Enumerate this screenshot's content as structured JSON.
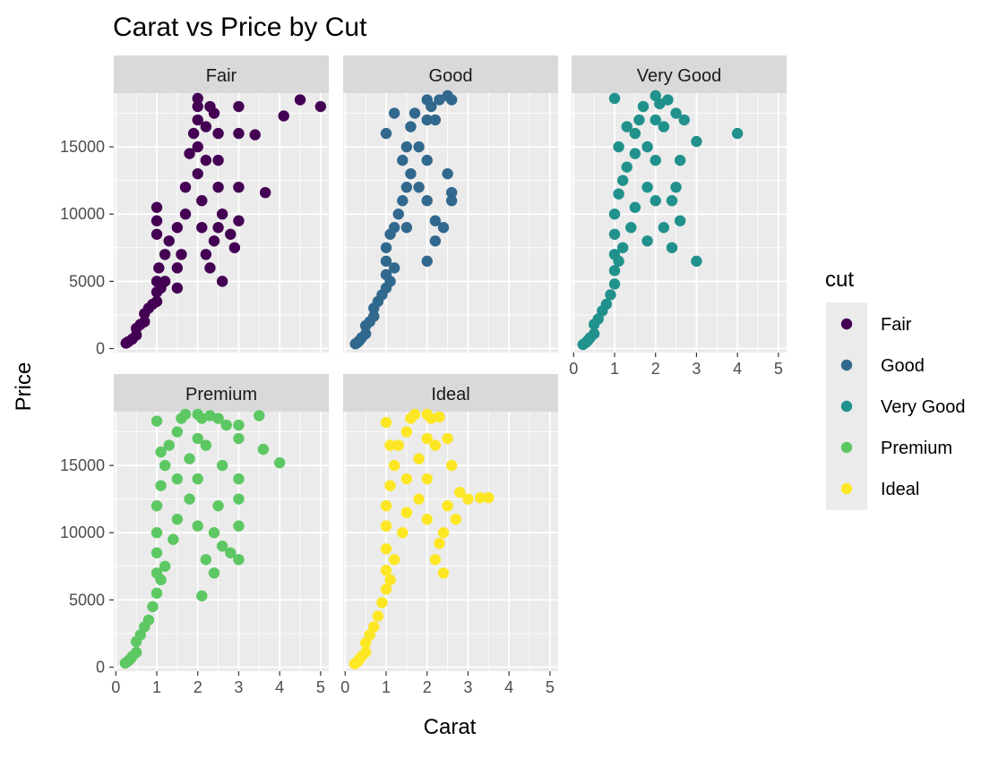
{
  "chart_data": {
    "type": "scatter",
    "title": "Carat vs Price by Cut",
    "xlabel": "Carat",
    "ylabel": "Price",
    "xlim": [
      -0.05,
      5.2
    ],
    "ylim": [
      -300,
      19000
    ],
    "x_ticks": [
      0,
      1,
      2,
      3,
      4,
      5
    ],
    "y_ticks": [
      0,
      5000,
      10000,
      15000
    ],
    "x_tick_labels": [
      "0",
      "1",
      "2",
      "3",
      "4",
      "5"
    ],
    "y_tick_labels": [
      "0",
      "5000",
      "10000",
      "15000"
    ],
    "grid": true,
    "legend": {
      "title": "cut",
      "position": "right"
    },
    "facets": [
      "Fair",
      "Good",
      "Very Good",
      "Premium",
      "Ideal"
    ],
    "series": [
      {
        "name": "Fair",
        "color": "#440154",
        "points": [
          [
            0.25,
            400
          ],
          [
            0.3,
            500
          ],
          [
            0.4,
            700
          ],
          [
            0.5,
            1000
          ],
          [
            0.5,
            1500
          ],
          [
            0.6,
            1800
          ],
          [
            0.7,
            2000
          ],
          [
            0.7,
            2600
          ],
          [
            0.8,
            3000
          ],
          [
            0.9,
            3300
          ],
          [
            1.0,
            3500
          ],
          [
            1.0,
            4200
          ],
          [
            1.0,
            5000
          ],
          [
            1.05,
            6000
          ],
          [
            1.1,
            4500
          ],
          [
            1.2,
            5000
          ],
          [
            1.0,
            10500
          ],
          [
            1.0,
            9500
          ],
          [
            1.0,
            8500
          ],
          [
            1.2,
            7000
          ],
          [
            1.3,
            8000
          ],
          [
            1.5,
            9000
          ],
          [
            1.5,
            6000
          ],
          [
            1.5,
            4500
          ],
          [
            1.6,
            7000
          ],
          [
            1.7,
            10000
          ],
          [
            1.7,
            12000
          ],
          [
            1.8,
            14500
          ],
          [
            1.9,
            16000
          ],
          [
            2.0,
            18600
          ],
          [
            2.0,
            18000
          ],
          [
            2.0,
            17000
          ],
          [
            2.0,
            15000
          ],
          [
            2.0,
            13000
          ],
          [
            2.1,
            11000
          ],
          [
            2.1,
            9000
          ],
          [
            2.2,
            14000
          ],
          [
            2.2,
            16500
          ],
          [
            2.3,
            18000
          ],
          [
            2.4,
            17500
          ],
          [
            2.5,
            16000
          ],
          [
            2.5,
            14000
          ],
          [
            2.5,
            12000
          ],
          [
            2.2,
            7000
          ],
          [
            2.3,
            6000
          ],
          [
            2.4,
            8000
          ],
          [
            2.5,
            9000
          ],
          [
            2.6,
            5000
          ],
          [
            2.6,
            10000
          ],
          [
            2.8,
            8500
          ],
          [
            2.9,
            7500
          ],
          [
            3.0,
            12000
          ],
          [
            3.0,
            18000
          ],
          [
            3.0,
            16000
          ],
          [
            3.0,
            9500
          ],
          [
            3.4,
            15900
          ],
          [
            3.65,
            11600
          ],
          [
            4.1,
            17300
          ],
          [
            4.5,
            18500
          ],
          [
            5.0,
            18000
          ]
        ]
      },
      {
        "name": "Good",
        "color": "#31688E",
        "points": [
          [
            0.25,
            350
          ],
          [
            0.3,
            450
          ],
          [
            0.35,
            600
          ],
          [
            0.4,
            800
          ],
          [
            0.5,
            1100
          ],
          [
            0.5,
            1700
          ],
          [
            0.6,
            2000
          ],
          [
            0.7,
            2400
          ],
          [
            0.7,
            3000
          ],
          [
            0.8,
            3500
          ],
          [
            0.9,
            4000
          ],
          [
            1.0,
            4500
          ],
          [
            1.0,
            5500
          ],
          [
            1.0,
            6500
          ],
          [
            1.0,
            7500
          ],
          [
            1.1,
            8500
          ],
          [
            1.1,
            5000
          ],
          [
            1.2,
            6000
          ],
          [
            1.2,
            9000
          ],
          [
            1.3,
            10000
          ],
          [
            1.4,
            11000
          ],
          [
            1.5,
            12000
          ],
          [
            1.5,
            9000
          ],
          [
            1.5,
            15000
          ],
          [
            1.6,
            16500
          ],
          [
            1.7,
            17500
          ],
          [
            1.2,
            17500
          ],
          [
            1.0,
            16000
          ],
          [
            1.4,
            14000
          ],
          [
            1.6,
            13000
          ],
          [
            1.8,
            15000
          ],
          [
            1.8,
            12000
          ],
          [
            2.0,
            18500
          ],
          [
            2.0,
            17000
          ],
          [
            2.0,
            14000
          ],
          [
            2.0,
            11000
          ],
          [
            2.1,
            18000
          ],
          [
            2.2,
            17000
          ],
          [
            2.3,
            18500
          ],
          [
            2.5,
            18800
          ],
          [
            2.6,
            18500
          ],
          [
            2.6,
            11600
          ],
          [
            2.6,
            11000
          ],
          [
            2.2,
            9500
          ],
          [
            2.2,
            8000
          ],
          [
            2.4,
            9000
          ],
          [
            2.5,
            13000
          ],
          [
            2.0,
            6500
          ]
        ]
      },
      {
        "name": "Very Good",
        "color": "#21918C",
        "points": [
          [
            0.23,
            300
          ],
          [
            0.3,
            450
          ],
          [
            0.35,
            600
          ],
          [
            0.4,
            800
          ],
          [
            0.5,
            1100
          ],
          [
            0.5,
            1800
          ],
          [
            0.6,
            2200
          ],
          [
            0.7,
            2800
          ],
          [
            0.8,
            3300
          ],
          [
            0.9,
            4000
          ],
          [
            1.0,
            4800
          ],
          [
            1.0,
            5800
          ],
          [
            1.0,
            7000
          ],
          [
            1.0,
            8500
          ],
          [
            1.0,
            10000
          ],
          [
            1.1,
            11500
          ],
          [
            1.1,
            6500
          ],
          [
            1.2,
            7500
          ],
          [
            1.2,
            12500
          ],
          [
            1.3,
            13500
          ],
          [
            1.4,
            9000
          ],
          [
            1.5,
            10500
          ],
          [
            1.5,
            14500
          ],
          [
            1.5,
            16000
          ],
          [
            1.6,
            17000
          ],
          [
            1.7,
            18000
          ],
          [
            1.0,
            18600
          ],
          [
            1.1,
            15000
          ],
          [
            1.3,
            16500
          ],
          [
            1.8,
            15000
          ],
          [
            1.8,
            12000
          ],
          [
            2.0,
            18800
          ],
          [
            2.0,
            17000
          ],
          [
            2.0,
            14000
          ],
          [
            2.0,
            11000
          ],
          [
            2.1,
            18200
          ],
          [
            2.2,
            16500
          ],
          [
            2.3,
            18500
          ],
          [
            2.5,
            17500
          ],
          [
            2.7,
            17000
          ],
          [
            2.6,
            14000
          ],
          [
            2.5,
            12000
          ],
          [
            2.4,
            11000
          ],
          [
            2.2,
            9000
          ],
          [
            2.4,
            7500
          ],
          [
            2.6,
            9500
          ],
          [
            3.0,
            15400
          ],
          [
            3.0,
            6500
          ],
          [
            4.0,
            16000
          ],
          [
            1.8,
            8000
          ]
        ]
      },
      {
        "name": "Premium",
        "color": "#5DC863",
        "points": [
          [
            0.23,
            300
          ],
          [
            0.3,
            450
          ],
          [
            0.35,
            600
          ],
          [
            0.4,
            800
          ],
          [
            0.5,
            1100
          ],
          [
            0.5,
            1900
          ],
          [
            0.6,
            2400
          ],
          [
            0.7,
            3000
          ],
          [
            0.8,
            3500
          ],
          [
            0.9,
            4500
          ],
          [
            1.0,
            5500
          ],
          [
            1.0,
            7000
          ],
          [
            1.0,
            8500
          ],
          [
            1.0,
            10000
          ],
          [
            1.0,
            12000
          ],
          [
            1.1,
            13500
          ],
          [
            1.1,
            6500
          ],
          [
            1.2,
            7500
          ],
          [
            1.2,
            15000
          ],
          [
            1.3,
            16500
          ],
          [
            1.4,
            9500
          ],
          [
            1.5,
            11000
          ],
          [
            1.5,
            14000
          ],
          [
            1.5,
            17500
          ],
          [
            1.6,
            18500
          ],
          [
            1.7,
            18800
          ],
          [
            1.0,
            18300
          ],
          [
            1.1,
            16000
          ],
          [
            1.8,
            15500
          ],
          [
            1.8,
            12500
          ],
          [
            2.0,
            18800
          ],
          [
            2.0,
            17000
          ],
          [
            2.0,
            14000
          ],
          [
            2.0,
            10500
          ],
          [
            2.1,
            18500
          ],
          [
            2.2,
            16500
          ],
          [
            2.3,
            18700
          ],
          [
            2.5,
            18500
          ],
          [
            2.7,
            18000
          ],
          [
            2.6,
            15000
          ],
          [
            2.5,
            12000
          ],
          [
            2.4,
            10000
          ],
          [
            2.2,
            8000
          ],
          [
            2.4,
            7000
          ],
          [
            2.6,
            9000
          ],
          [
            2.8,
            8500
          ],
          [
            3.0,
            18000
          ],
          [
            3.0,
            17000
          ],
          [
            3.0,
            14000
          ],
          [
            3.0,
            12500
          ],
          [
            3.0,
            10500
          ],
          [
            3.0,
            8000
          ],
          [
            3.5,
            18700
          ],
          [
            3.6,
            16200
          ],
          [
            4.0,
            15200
          ],
          [
            2.1,
            5300
          ]
        ]
      },
      {
        "name": "Ideal",
        "color": "#FDE725",
        "points": [
          [
            0.23,
            250
          ],
          [
            0.3,
            400
          ],
          [
            0.35,
            600
          ],
          [
            0.4,
            800
          ],
          [
            0.5,
            1100
          ],
          [
            0.5,
            1800
          ],
          [
            0.6,
            2400
          ],
          [
            0.7,
            3000
          ],
          [
            0.8,
            3800
          ],
          [
            0.9,
            4800
          ],
          [
            1.0,
            5800
          ],
          [
            1.0,
            7200
          ],
          [
            1.0,
            8800
          ],
          [
            1.0,
            10500
          ],
          [
            1.0,
            12000
          ],
          [
            1.1,
            13500
          ],
          [
            1.1,
            6500
          ],
          [
            1.2,
            8000
          ],
          [
            1.2,
            15000
          ],
          [
            1.3,
            16500
          ],
          [
            1.4,
            10000
          ],
          [
            1.5,
            11500
          ],
          [
            1.5,
            14000
          ],
          [
            1.5,
            17500
          ],
          [
            1.6,
            18500
          ],
          [
            1.7,
            18800
          ],
          [
            1.0,
            18200
          ],
          [
            1.1,
            16500
          ],
          [
            1.8,
            15500
          ],
          [
            1.8,
            12500
          ],
          [
            2.0,
            18800
          ],
          [
            2.0,
            17000
          ],
          [
            2.0,
            14000
          ],
          [
            2.0,
            11000
          ],
          [
            2.1,
            18500
          ],
          [
            2.2,
            16500
          ],
          [
            2.3,
            18600
          ],
          [
            2.5,
            17000
          ],
          [
            2.6,
            15000
          ],
          [
            2.5,
            12000
          ],
          [
            2.4,
            10000
          ],
          [
            2.2,
            8000
          ],
          [
            2.4,
            7000
          ],
          [
            2.7,
            11000
          ],
          [
            2.8,
            13000
          ],
          [
            3.0,
            12500
          ],
          [
            3.3,
            12600
          ],
          [
            3.5,
            12600
          ],
          [
            2.3,
            9200
          ]
        ]
      }
    ]
  }
}
